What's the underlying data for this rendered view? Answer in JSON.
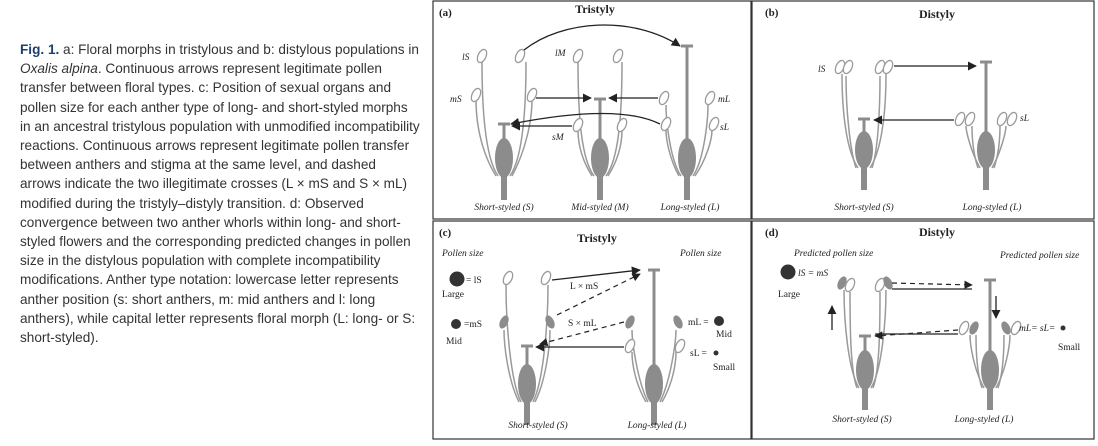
{
  "caption": {
    "label": "Fig. 1.",
    "part1": " a: Floral morphs in tristylous and b: distylous populations in ",
    "species": "Oxalis alpina",
    "part2": ". Continuous arrows represent legitimate pollen transfer between floral types. c: Position of sexual organs and pollen size for each anther type of long- and short-styled morphs in an ancestral tristylous population with unmodified incompatibility reactions. Continuous arrows represent legitimate pollen transfer between anthers and stigma at the same level, and dashed arrows indicate the two illegitimate crosses (L × mS and S × mL) modified during the tristyly–distyly transition. d: Observed convergence between two anther whorls within long- and short-styled flowers and the corresponding predicted changes in pollen size in the distylous population with complete incompatibility modifications. Anther type notation: lowercase letter represents anther position (s: short anthers, m: mid anthers and l: long anthers), while capital letter represents floral morph (L: long- or S: short-styled)."
  },
  "colors": {
    "organ": "#8c8c8c",
    "outline": "#9a9a9a",
    "frame": "#333333",
    "text": "#222222",
    "caption_label": "#1d3f6e"
  },
  "panels": {
    "a": {
      "letter": "(a)",
      "title": "Tristyly",
      "anther_labels": {
        "lS": "lS",
        "lM": "lM",
        "mS": "mS",
        "sM": "sM",
        "mL": "mL",
        "sL": "sL"
      },
      "morphs": [
        "Short-styled (S)",
        "Mid-styled (M)",
        "Long-styled (L)"
      ]
    },
    "b": {
      "letter": "(b)",
      "title": "Distyly",
      "anther_labels": {
        "lS": "lS",
        "sL": "sL"
      },
      "morphs": [
        "Short-styled (S)",
        "Long-styled (L)"
      ]
    },
    "c": {
      "letter": "(c)",
      "title": "Tristyly",
      "pollen_size_left": "Pollen size",
      "pollen_size_right": "Pollen size",
      "eq_lS": "= lS",
      "size_large": "Large",
      "eq_mS": "=mS",
      "size_mid_left": "Mid",
      "eq_mL": "mL =",
      "size_mid_right": "Mid",
      "eq_sL": "sL =",
      "size_small": "Small",
      "cross_1": "L × mS",
      "cross_2": "S × mL",
      "morphs": [
        "Short-styled (S)",
        "Long-styled (L)"
      ]
    },
    "d": {
      "letter": "(d)",
      "title": "Distyly",
      "predicted_left": "Predicted pollen size",
      "predicted_right": "Predicted pollen size",
      "eq_lS": "lS = mS",
      "size_large": "Large",
      "eq_small": "mL= sL=",
      "size_small": "Small",
      "morphs": [
        "Short-styled (S)",
        "Long-styled (L)"
      ]
    }
  }
}
